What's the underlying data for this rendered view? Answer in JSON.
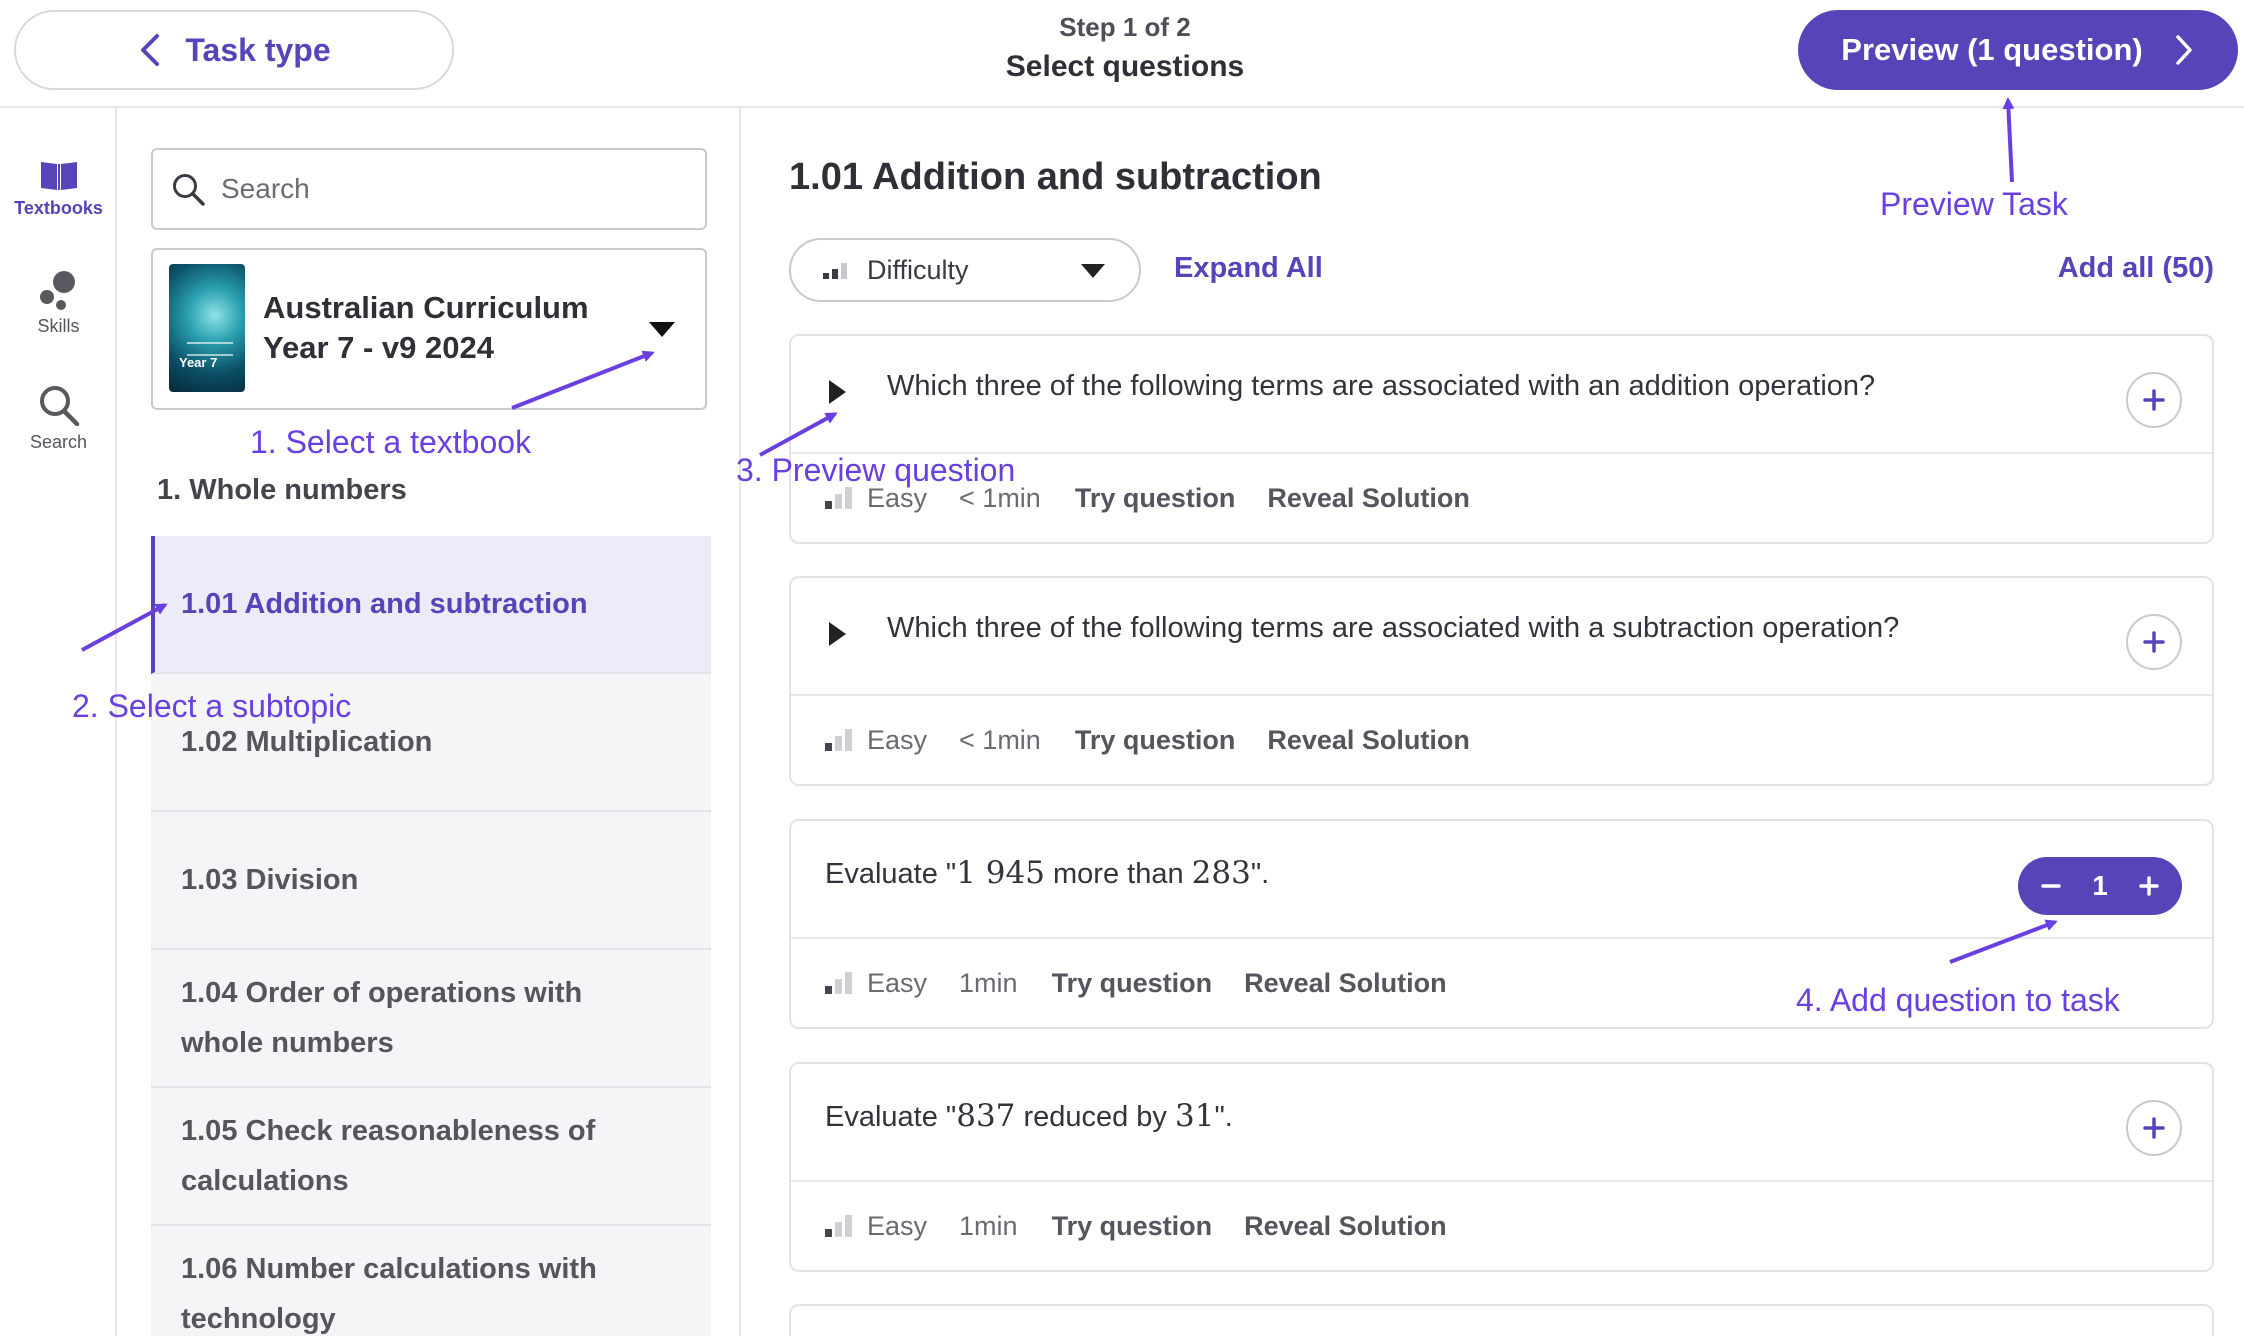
{
  "header": {
    "back_label": "Task type",
    "step": "Step 1 of 2",
    "title": "Select questions",
    "preview_label": "Preview (1 question)"
  },
  "rail": {
    "items": [
      {
        "label": "Textbooks",
        "icon": "book-icon",
        "active": true
      },
      {
        "label": "Skills",
        "icon": "skills-icon",
        "active": false
      },
      {
        "label": "Search",
        "icon": "search-icon",
        "active": false
      }
    ]
  },
  "panel": {
    "search_placeholder": "Search",
    "textbook": {
      "title_line1": "Australian Curriculum",
      "title_line2": "Year 7 - v9 2024",
      "cover_label": "Year 7"
    },
    "chapter": "1. Whole numbers",
    "topics": [
      {
        "label": "1.01 Addition and subtraction",
        "active": true
      },
      {
        "label": "1.02 Multiplication",
        "active": false
      },
      {
        "label": "1.03 Division",
        "active": false
      },
      {
        "label": "1.04 Order of operations with whole numbers",
        "active": false
      },
      {
        "label": "1.05 Check reasonableness of calculations",
        "active": false
      },
      {
        "label": "1.06 Number calculations with technology",
        "active": false
      }
    ]
  },
  "main": {
    "subtopic_title": "1.01 Addition and subtraction",
    "difficulty_label": "Difficulty",
    "expand_all": "Expand All",
    "add_all": "Add all (50)",
    "questions": [
      {
        "prefix": "Which three of the following terms are associated with an addition operation?",
        "difficulty": "Easy",
        "time": "< 1min",
        "try": "Try question",
        "reveal": "Reveal Solution",
        "count": "0"
      },
      {
        "prefix": "Which three of the following terms are associated with a subtraction operation?",
        "difficulty": "Easy",
        "time": "< 1min",
        "try": "Try question",
        "reveal": "Reveal Solution",
        "count": "0"
      },
      {
        "prefix": "Evaluate \"",
        "math1": "1 945",
        "mid": " more than ",
        "math2": "283",
        "suffix": "\".",
        "difficulty": "Easy",
        "time": "1min",
        "try": "Try question",
        "reveal": "Reveal Solution",
        "count": "1"
      },
      {
        "prefix": "Evaluate \"",
        "math1": "837",
        "mid": " reduced by ",
        "math2": "31",
        "suffix": "\".",
        "difficulty": "Easy",
        "time": "1min",
        "try": "Try question",
        "reveal": "Reveal Solution",
        "count": "0"
      }
    ]
  },
  "annotations": {
    "select_textbook": "1. Select a textbook",
    "select_subtopic": "2. Select a subtopic",
    "preview_question": "3. Preview question",
    "add_question": "4. Add question to task",
    "preview_task": "Preview Task"
  },
  "colors": {
    "accent": "#5645b8",
    "annotation": "#6a3fe0"
  }
}
